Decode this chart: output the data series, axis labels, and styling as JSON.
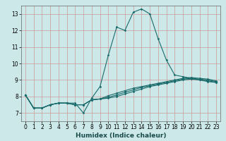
{
  "xlabel": "Humidex (Indice chaleur)",
  "background_color": "#cce8e8",
  "grid_color": "#aacccc",
  "line_color": "#1a6b6b",
  "xlim": [
    -0.5,
    23.5
  ],
  "ylim": [
    6.5,
    13.5
  ],
  "xticks": [
    0,
    1,
    2,
    3,
    4,
    5,
    6,
    7,
    8,
    9,
    10,
    11,
    12,
    13,
    14,
    15,
    16,
    17,
    18,
    19,
    20,
    21,
    22,
    23
  ],
  "yticks": [
    7,
    8,
    9,
    10,
    11,
    12,
    13
  ],
  "main_x": [
    0,
    1,
    2,
    3,
    4,
    5,
    6,
    7,
    8,
    9,
    10,
    11,
    12,
    13,
    14,
    15,
    16,
    17,
    18,
    19,
    20,
    21,
    22,
    23
  ],
  "main_y": [
    8.1,
    7.3,
    7.3,
    7.5,
    7.6,
    7.6,
    7.6,
    7.0,
    7.9,
    8.6,
    10.5,
    12.2,
    12.0,
    13.1,
    13.3,
    13.0,
    11.5,
    10.2,
    9.3,
    9.2,
    9.1,
    9.0,
    8.9,
    8.85
  ],
  "line2_x": [
    0,
    1,
    2,
    3,
    4,
    5,
    6,
    7,
    8,
    9,
    10,
    11,
    12,
    13,
    14,
    15,
    16,
    17,
    18,
    19,
    20,
    21,
    22,
    23
  ],
  "line2_y": [
    8.1,
    7.3,
    7.3,
    7.5,
    7.6,
    7.6,
    7.5,
    7.5,
    7.8,
    7.85,
    7.9,
    8.0,
    8.15,
    8.3,
    8.45,
    8.6,
    8.7,
    8.8,
    8.9,
    9.0,
    9.05,
    9.0,
    8.95,
    8.85
  ],
  "line3_x": [
    0,
    1,
    2,
    3,
    4,
    5,
    6,
    7,
    8,
    9,
    10,
    11,
    12,
    13,
    14,
    15,
    16,
    17,
    18,
    19,
    20,
    21,
    22,
    23
  ],
  "line3_y": [
    8.1,
    7.3,
    7.3,
    7.5,
    7.6,
    7.6,
    7.5,
    7.5,
    7.8,
    7.85,
    7.95,
    8.1,
    8.25,
    8.4,
    8.55,
    8.65,
    8.75,
    8.85,
    8.95,
    9.05,
    9.1,
    9.05,
    9.0,
    8.9
  ],
  "line4_x": [
    0,
    1,
    2,
    3,
    4,
    5,
    6,
    7,
    8,
    9,
    10,
    11,
    12,
    13,
    14,
    15,
    16,
    17,
    18,
    19,
    20,
    21,
    22,
    23
  ],
  "line4_y": [
    8.1,
    7.3,
    7.3,
    7.5,
    7.6,
    7.6,
    7.5,
    7.5,
    7.8,
    7.85,
    8.05,
    8.2,
    8.35,
    8.5,
    8.6,
    8.7,
    8.8,
    8.9,
    9.0,
    9.1,
    9.15,
    9.1,
    9.05,
    8.95
  ]
}
